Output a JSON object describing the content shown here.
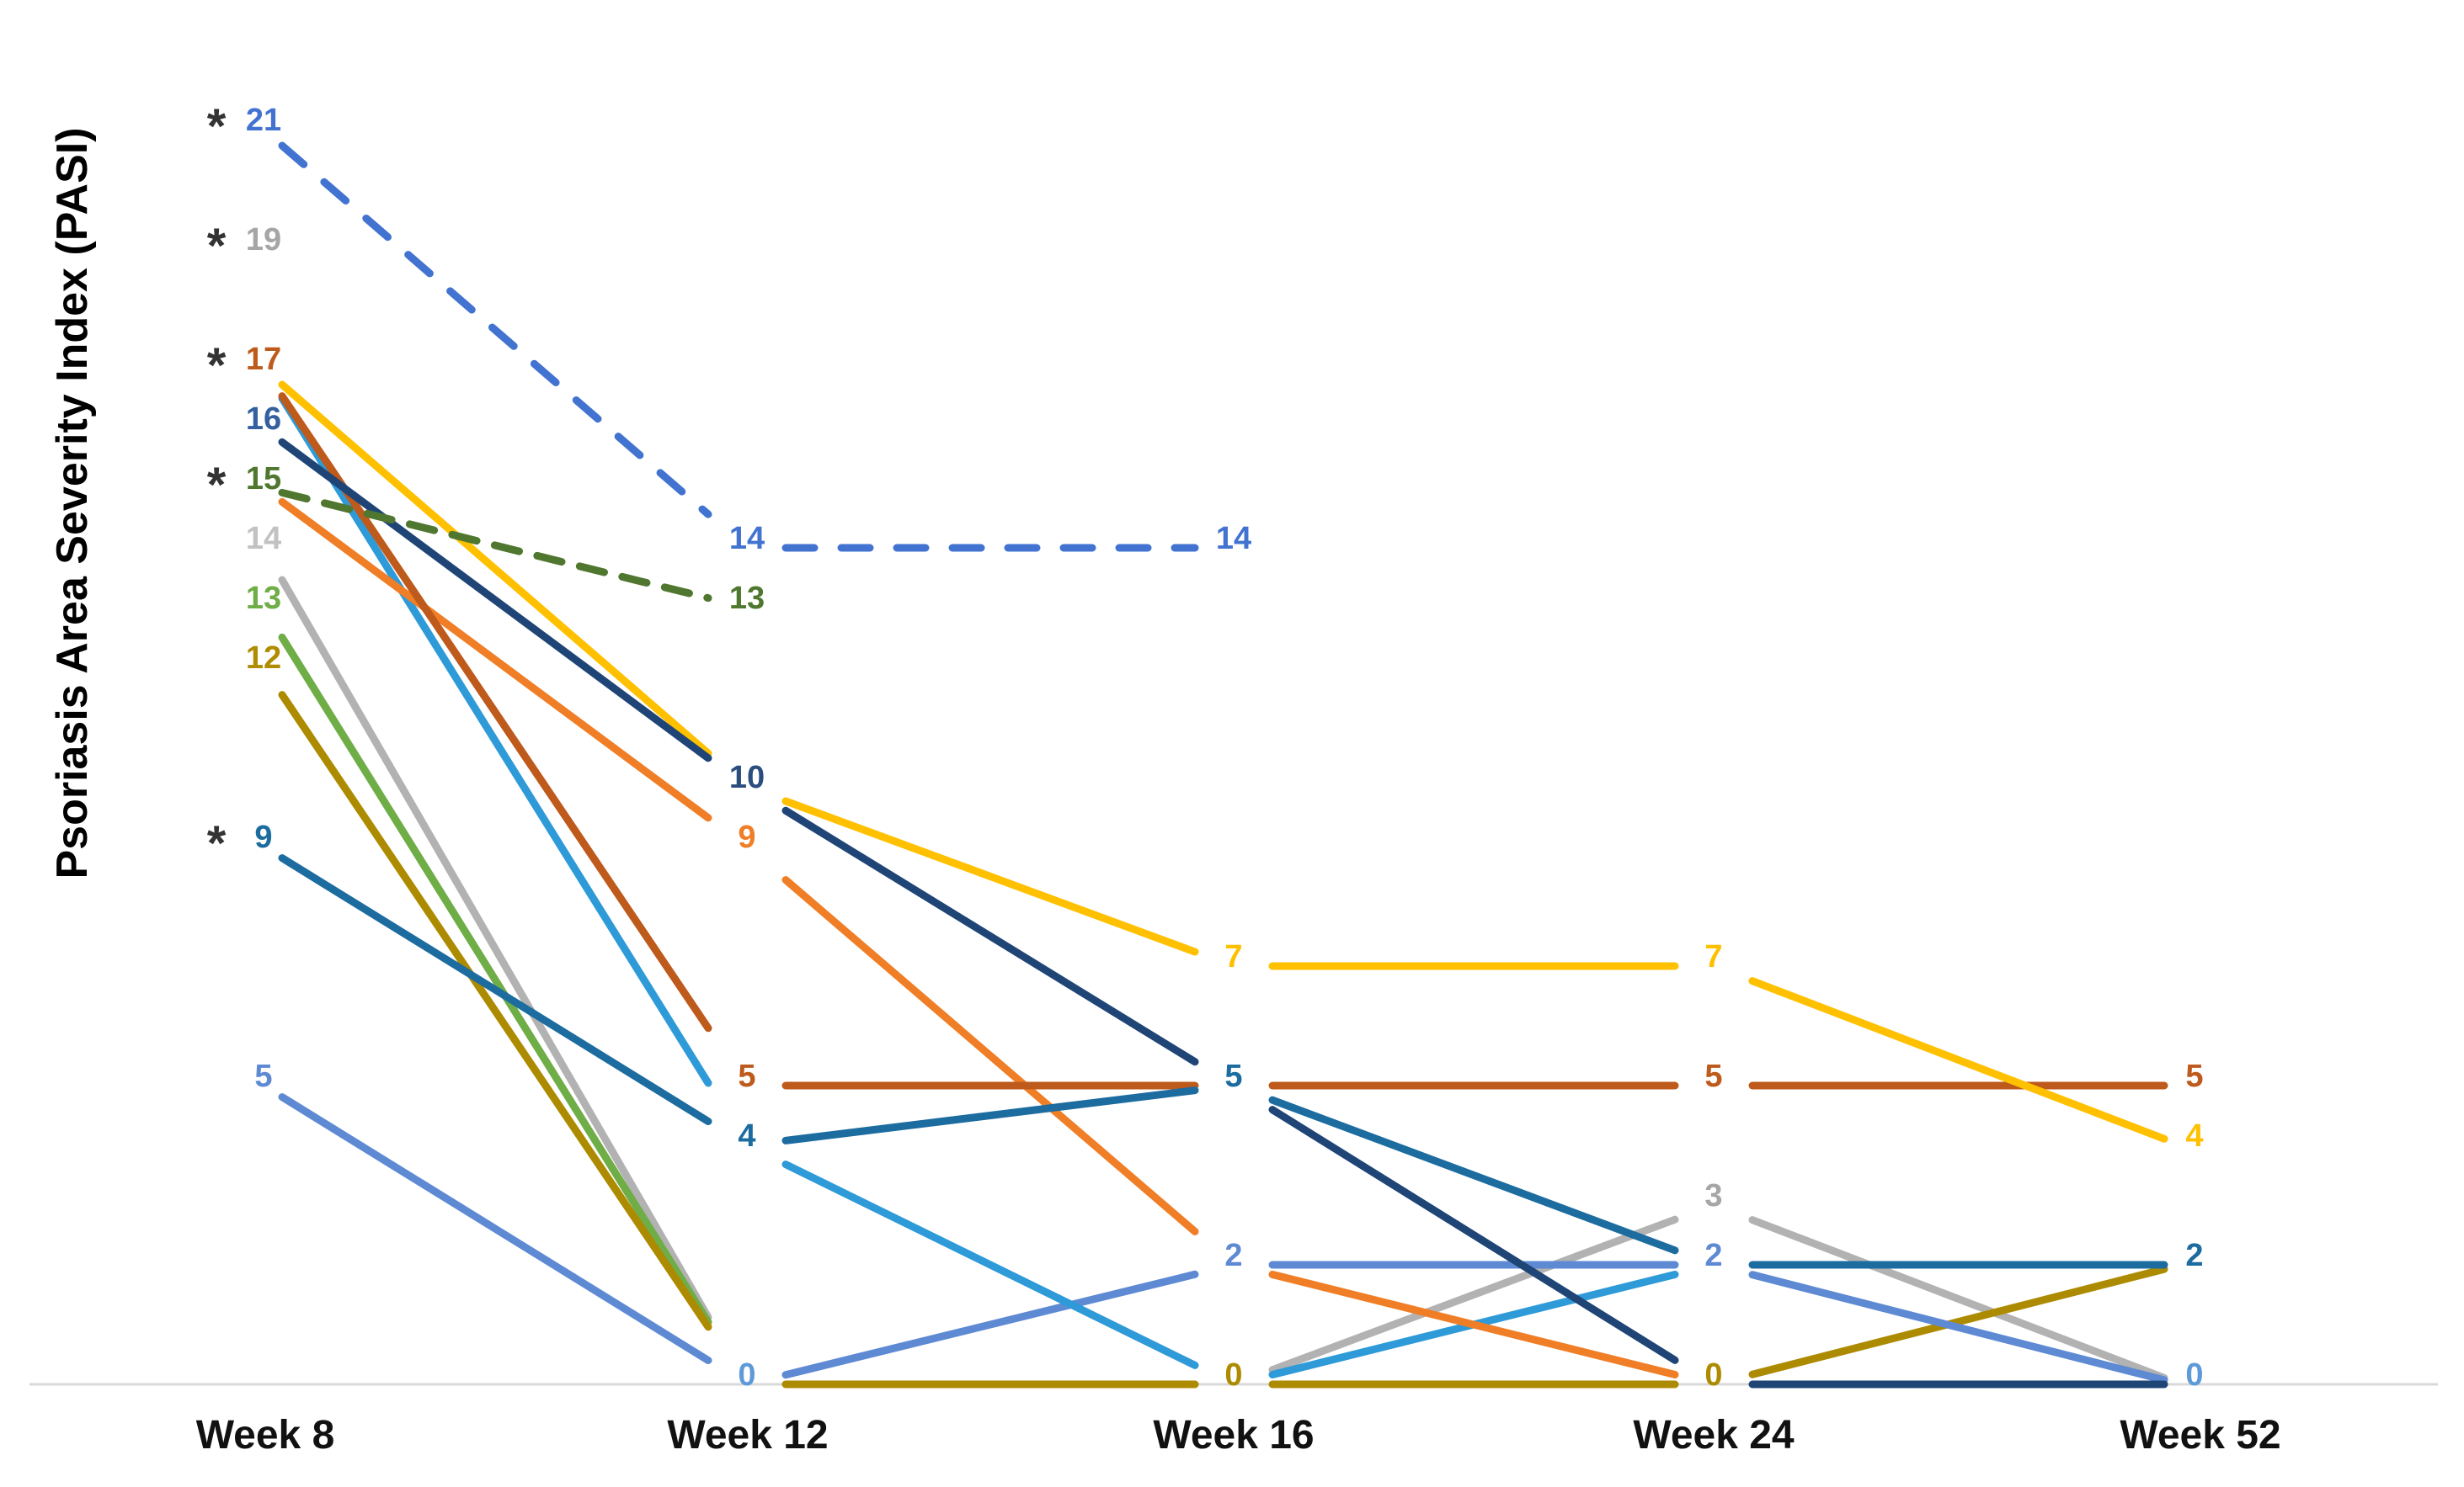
{
  "chart_data": {
    "type": "line",
    "title": "",
    "ylabel": "Psoriasis Area Severity Index (PASI)",
    "xlabel": "",
    "categories": [
      "Week 8",
      "Week 12",
      "Week 16",
      "Week 24",
      "Week 52"
    ],
    "ylim": [
      0,
      22
    ],
    "grid": false,
    "legend_position": "none",
    "axis_baseline_color": "#D9D9D9",
    "asterisk_color": "#333333",
    "asterisk_marks": [
      {
        "category_index": 0,
        "value": 21
      },
      {
        "category_index": 0,
        "value": 19
      },
      {
        "category_index": 0,
        "value": 17
      },
      {
        "category_index": 0,
        "value": 15
      },
      {
        "category_index": 0,
        "value": 9
      }
    ],
    "orphan_points": [
      {
        "category_index": 0,
        "value": 19,
        "label": "19",
        "color": "#A6A6A6"
      }
    ],
    "series": [
      {
        "name": "patient-gray-14",
        "color": "#B2B2B2",
        "dash": null,
        "points": [
          [
            0,
            14
          ],
          [
            1,
            0
          ],
          [
            2,
            0
          ],
          [
            3,
            3
          ],
          [
            4,
            0
          ]
        ],
        "labels": [
          {
            "i": 0,
            "t": "14",
            "c": "#C2C2C2"
          },
          {
            "i": 3,
            "t": "3",
            "c": "#A6A6A6"
          }
        ]
      },
      {
        "name": "patient-green-13",
        "color": "#6FAD47",
        "dash": null,
        "points": [
          [
            0,
            13
          ],
          [
            1,
            0
          ]
        ],
        "labels": [
          {
            "i": 0,
            "t": "13"
          }
        ]
      },
      {
        "name": "patient-olive-12",
        "color": "#AD8B00",
        "dash": null,
        "points": [
          [
            0,
            12
          ],
          [
            1,
            0
          ],
          [
            2,
            0
          ],
          [
            3,
            0
          ],
          [
            4,
            2
          ]
        ],
        "labels": [
          {
            "i": 0,
            "t": "12",
            "c": "#B08C00"
          },
          {
            "i": 2,
            "t": "0"
          },
          {
            "i": 3,
            "t": "0"
          }
        ]
      },
      {
        "name": "patient-cornflower-5",
        "color": "#5E8AD4",
        "dash": null,
        "points": [
          [
            0,
            5
          ],
          [
            1,
            0
          ],
          [
            2,
            2
          ],
          [
            3,
            2
          ],
          [
            4,
            0
          ]
        ],
        "labels": [
          {
            "i": 0,
            "t": "5"
          },
          {
            "i": 1,
            "t": "0",
            "c": "#5E9AD8"
          },
          {
            "i": 2,
            "t": "2"
          },
          {
            "i": 3,
            "t": "2"
          },
          {
            "i": 4,
            "t": "0",
            "c": "#5E9AD8"
          }
        ]
      },
      {
        "name": "patient-sky-17",
        "color": "#2E9AD8",
        "dash": null,
        "points": [
          [
            0,
            17
          ],
          [
            1,
            4
          ],
          [
            2,
            0
          ],
          [
            3,
            2
          ]
        ],
        "labels": []
      },
      {
        "name": "patient-orange-15",
        "color": "#F07E26",
        "dash": null,
        "points": [
          [
            0,
            15
          ],
          [
            1,
            9
          ],
          [
            2,
            2
          ],
          [
            3,
            0
          ]
        ],
        "labels": [
          {
            "i": 1,
            "t": "9"
          }
        ]
      },
      {
        "name": "patient-rust-17",
        "color": "#BE5A1B",
        "dash": null,
        "points": [
          [
            0,
            17
          ],
          [
            1,
            5
          ],
          [
            2,
            5
          ],
          [
            3,
            5
          ],
          [
            4,
            5
          ]
        ],
        "labels": [
          {
            "i": 0,
            "t": "17"
          },
          {
            "i": 1,
            "t": "5"
          },
          {
            "i": 3,
            "t": "5"
          },
          {
            "i": 4,
            "t": "5"
          }
        ]
      },
      {
        "name": "patient-yellow-17",
        "color": "#FFC000",
        "dash": null,
        "points": [
          [
            0,
            17
          ],
          [
            1,
            10
          ],
          [
            2,
            7
          ],
          [
            3,
            7
          ],
          [
            4,
            4
          ]
        ],
        "labels": [
          {
            "i": 2,
            "t": "7"
          },
          {
            "i": 3,
            "t": "7"
          },
          {
            "i": 4,
            "t": "4"
          }
        ]
      },
      {
        "name": "patient-navy-16",
        "color": "#1F4577",
        "dash": null,
        "points": [
          [
            0,
            16
          ],
          [
            1,
            10
          ],
          [
            2,
            5
          ],
          [
            3,
            0
          ],
          [
            4,
            0
          ]
        ],
        "labels": [
          {
            "i": 0,
            "t": "16",
            "c": "#34609F"
          },
          {
            "i": 1,
            "t": "10",
            "c": "#2B4E7E"
          }
        ]
      },
      {
        "name": "patient-teal-9",
        "color": "#1C6CA0",
        "dash": null,
        "points": [
          [
            0,
            9
          ],
          [
            1,
            4
          ],
          [
            2,
            5
          ],
          [
            3,
            2
          ],
          [
            4,
            2
          ]
        ],
        "labels": [
          {
            "i": 0,
            "t": "9"
          },
          {
            "i": 1,
            "t": "4"
          },
          {
            "i": 2,
            "t": "5"
          },
          {
            "i": 4,
            "t": "2"
          }
        ]
      },
      {
        "name": "patient-dkgreen-15",
        "color": "#50772F",
        "dash": "30 22",
        "points": [
          [
            0,
            15
          ],
          [
            1,
            13
          ]
        ],
        "labels": [
          {
            "i": 0,
            "t": "15"
          },
          {
            "i": 1,
            "t": "13"
          }
        ]
      },
      {
        "name": "patient-blue-21",
        "color": "#4273D1",
        "dash": "34 32",
        "points": [
          [
            0,
            21
          ],
          [
            1,
            14
          ],
          [
            2,
            14
          ]
        ],
        "labels": [
          {
            "i": 0,
            "t": "21"
          },
          {
            "i": 1,
            "t": "14"
          },
          {
            "i": 2,
            "t": "14"
          }
        ]
      }
    ]
  }
}
